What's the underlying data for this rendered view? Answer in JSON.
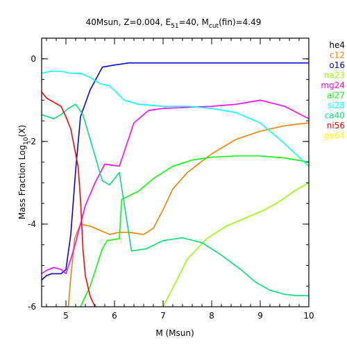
{
  "chart_data": {
    "type": "line",
    "title": {
      "main": "40Msun, Z=0.004, E",
      "sub1": "51",
      "mid": "=40, M",
      "sub2": "cut",
      "tail": "(fin)=4.49"
    },
    "xlabel": "M (Msun)",
    "ylabel": {
      "main": "Mass Fraction Log",
      "sub": "10",
      "tail": "(X)"
    },
    "xlim": [
      4.5,
      10
    ],
    "ylim": [
      -6,
      0.5
    ],
    "x_ticks": [
      "5",
      "6",
      "7",
      "8",
      "9",
      "10"
    ],
    "y_ticks": [
      "0",
      "-2",
      "-4",
      "-6"
    ],
    "grid": false,
    "legend_position": "right",
    "series": [
      {
        "name": "he4",
        "color": "#000000",
        "x": [],
        "y": []
      },
      {
        "name": "c12",
        "color": "#f08000",
        "x": [
          5.05,
          5.1,
          5.18,
          5.3,
          5.5,
          5.7,
          5.9,
          6.1,
          6.3,
          6.6,
          6.8,
          7.0,
          7.2,
          7.5,
          8.0,
          8.5,
          9.0,
          9.5,
          10.0
        ],
        "y": [
          -6.0,
          -5.3,
          -4.35,
          -4.0,
          -4.05,
          -4.15,
          -4.25,
          -4.2,
          -4.2,
          -4.25,
          -4.1,
          -3.65,
          -3.15,
          -2.75,
          -2.3,
          -1.95,
          -1.75,
          -1.62,
          -1.55
        ]
      },
      {
        "name": "o16",
        "color": "#0000e0",
        "x": [
          4.5,
          4.6,
          4.7,
          4.9,
          5.0,
          5.1,
          5.2,
          5.3,
          5.5,
          5.75,
          6.0,
          6.3,
          7.0,
          8.0,
          9.0,
          10.0
        ],
        "y": [
          -5.35,
          -5.25,
          -5.2,
          -5.2,
          -5.1,
          -4.25,
          -2.7,
          -1.4,
          -0.75,
          -0.2,
          -0.15,
          -0.1,
          -0.1,
          -0.1,
          -0.1,
          -0.1
        ]
      },
      {
        "name": "na23",
        "color": "#90ff00",
        "x": [
          7.0,
          7.2,
          7.5,
          7.9,
          8.3,
          8.7,
          9.1,
          9.4,
          9.7,
          10.0
        ],
        "y": [
          -6.0,
          -5.55,
          -4.85,
          -4.35,
          -4.05,
          -3.85,
          -3.65,
          -3.45,
          -3.2,
          -3.0
        ]
      },
      {
        "name": "mg24",
        "color": "#ff00ff",
        "x": [
          4.5,
          4.6,
          4.75,
          4.9,
          5.0,
          5.1,
          5.2,
          5.4,
          5.6,
          5.8,
          6.1,
          6.4,
          6.7,
          7.0,
          8.0,
          8.5,
          9.0,
          9.5,
          10.0
        ],
        "y": [
          -5.2,
          -5.12,
          -5.05,
          -5.1,
          -5.2,
          -4.85,
          -4.45,
          -3.55,
          -3.0,
          -2.55,
          -2.6,
          -1.55,
          -1.25,
          -1.2,
          -1.15,
          -1.1,
          -1.0,
          -1.15,
          -1.45
        ]
      },
      {
        "name": "al27",
        "color": "#00ff00",
        "x": [
          5.3,
          5.5,
          5.75,
          5.85,
          6.1,
          6.15,
          6.5,
          6.8,
          7.2,
          7.6,
          8.0,
          8.5,
          9.0,
          9.5,
          10.0
        ],
        "y": [
          -6.0,
          -5.5,
          -4.6,
          -4.4,
          -4.35,
          -3.4,
          -3.2,
          -2.9,
          -2.6,
          -2.45,
          -2.38,
          -2.35,
          -2.35,
          -2.4,
          -2.5
        ]
      },
      {
        "name": "si28",
        "color": "#00ffff",
        "x": [
          4.5,
          4.7,
          4.9,
          5.1,
          5.3,
          5.5,
          5.7,
          5.9,
          6.2,
          6.5,
          7.0,
          7.5,
          8.0,
          8.5,
          9.0,
          9.5,
          10.0
        ],
        "y": [
          -0.35,
          -0.3,
          -0.3,
          -0.35,
          -0.35,
          -0.45,
          -0.6,
          -0.65,
          -1.0,
          -1.1,
          -1.15,
          -1.15,
          -1.2,
          -1.3,
          -1.55,
          -2.05,
          -2.6
        ]
      },
      {
        "name": "ca40",
        "color": "#00e070",
        "x": [
          4.5,
          4.75,
          4.9,
          5.05,
          5.2,
          5.35,
          5.6,
          5.75,
          5.9,
          6.1,
          6.35,
          6.65,
          7.0,
          7.4,
          7.8,
          8.2,
          8.6,
          8.9,
          9.2,
          9.5,
          9.75,
          10.0
        ],
        "y": [
          -1.35,
          -1.45,
          -1.35,
          -1.2,
          -1.1,
          -1.35,
          -2.35,
          -2.95,
          -3.05,
          -2.75,
          -4.65,
          -4.6,
          -4.4,
          -4.33,
          -4.45,
          -4.75,
          -5.1,
          -5.4,
          -5.6,
          -5.7,
          -5.73,
          -5.73
        ]
      },
      {
        "name": "ni56",
        "color": "#ff0000",
        "x": [
          4.5,
          4.6,
          4.75,
          4.9,
          5.0,
          5.1,
          5.2,
          5.25,
          5.3,
          5.35,
          5.4,
          5.5,
          5.6,
          5.62
        ],
        "y": [
          -0.8,
          -0.95,
          -1.05,
          -1.15,
          -1.4,
          -1.7,
          -2.3,
          -2.6,
          -3.4,
          -4.6,
          -5.25,
          -5.75,
          -6.0,
          -6.0
        ]
      },
      {
        "name": "ge64",
        "color": "#ffff00",
        "x": [],
        "y": []
      }
    ]
  }
}
